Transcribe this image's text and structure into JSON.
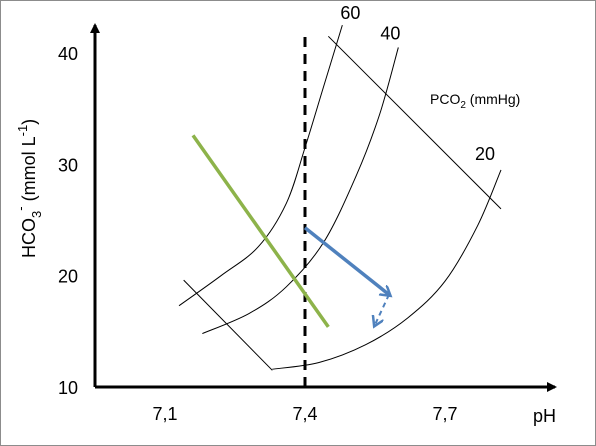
{
  "chart_data": {
    "type": "line",
    "xlabel": "pH",
    "ylabel": "HCO3- (mmol L-1)",
    "ylabel_parts": {
      "base": "HCO",
      "sub": "3",
      "sup": "-",
      "units": "(mmol L",
      "units_sup": "-1",
      "units_close": ")"
    },
    "xlim": [
      7.0,
      7.8
    ],
    "ylim": [
      10,
      43
    ],
    "x_tick_labels": [
      "7,1",
      "7,4",
      "7,7"
    ],
    "x_ticks": [
      7.1,
      7.4,
      7.7
    ],
    "y_tick_labels": [
      "10",
      "20",
      "30",
      "40"
    ],
    "y_ticks": [
      10,
      20,
      30,
      40
    ],
    "grid": false,
    "legend_title": "PCO2 (mmHg)",
    "legend_title_parts": {
      "base": "PCO",
      "sub": "2",
      "rest": " (mmHg)"
    },
    "isobars": [
      {
        "name": "60",
        "label": "60",
        "points": [
          [
            7.13,
            17.3
          ],
          [
            7.22,
            20.0
          ],
          [
            7.3,
            22.6
          ],
          [
            7.36,
            26.5
          ],
          [
            7.4,
            31.5
          ],
          [
            7.44,
            37.0
          ],
          [
            7.48,
            42.5
          ]
        ]
      },
      {
        "name": "40",
        "label": "40",
        "points": [
          [
            7.18,
            14.8
          ],
          [
            7.28,
            16.6
          ],
          [
            7.36,
            19.0
          ],
          [
            7.44,
            23.0
          ],
          [
            7.51,
            29.0
          ],
          [
            7.56,
            34.5
          ],
          [
            7.6,
            40.5
          ]
        ]
      },
      {
        "name": "20",
        "label": "20",
        "points": [
          [
            7.33,
            11.6
          ],
          [
            7.43,
            12.2
          ],
          [
            7.53,
            13.8
          ],
          [
            7.62,
            16.2
          ],
          [
            7.7,
            19.5
          ],
          [
            7.77,
            24.5
          ],
          [
            7.82,
            29.5
          ]
        ]
      }
    ],
    "buffer_lines": [
      {
        "points": [
          [
            7.14,
            19.6
          ],
          [
            7.33,
            11.5
          ]
        ]
      },
      {
        "points": [
          [
            7.45,
            41.5
          ],
          [
            7.82,
            26.0
          ]
        ]
      }
    ],
    "reference_line": {
      "x": 7.4,
      "y_range": [
        10,
        41.5
      ],
      "style": "dashed"
    },
    "green_line": {
      "color": "#8db34a",
      "points": [
        [
          7.16,
          32.6
        ],
        [
          7.45,
          15.4
        ]
      ]
    },
    "blue_arrow": {
      "color": "#4f81bd",
      "from": [
        7.4,
        24.3
      ],
      "to": [
        7.58,
        18.3
      ]
    },
    "dashed_arrow": {
      "color": "#4f81bd",
      "from": [
        7.58,
        18.3
      ],
      "to": [
        7.55,
        15.6
      ]
    }
  },
  "colors": {
    "axis": "#000000",
    "curves": "#000000",
    "green": "#8db34a",
    "blue": "#4f81bd",
    "frame": "#8c8c8c"
  }
}
